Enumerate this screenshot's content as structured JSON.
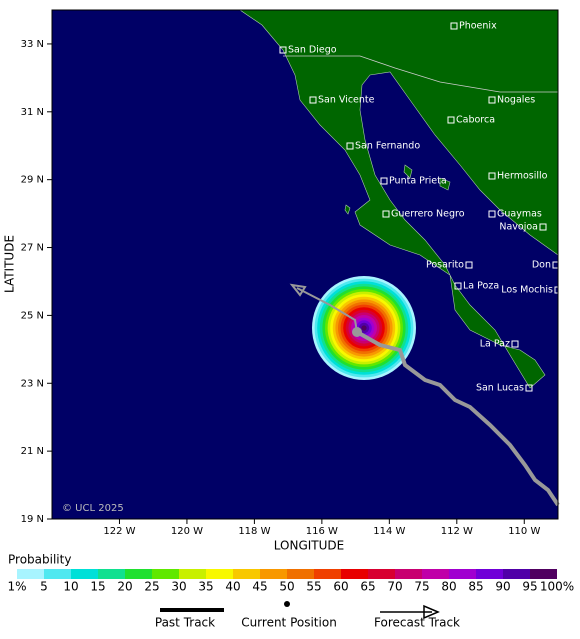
{
  "axes": {
    "x_label": "LONGITUDE",
    "y_label": "LATITUDE",
    "xlim": [
      -124,
      -109
    ],
    "ylim": [
      19,
      34
    ],
    "xticks": [
      {
        "value": -122,
        "label": "122 W"
      },
      {
        "value": -120,
        "label": "120 W"
      },
      {
        "value": -118,
        "label": "118 W"
      },
      {
        "value": -116,
        "label": "116 W"
      },
      {
        "value": -114,
        "label": "114 W"
      },
      {
        "value": -112,
        "label": "112 W"
      },
      {
        "value": -110,
        "label": "110 W"
      }
    ],
    "yticks": [
      {
        "value": 19,
        "label": "19 N"
      },
      {
        "value": 21,
        "label": "21 N"
      },
      {
        "value": 23,
        "label": "23 N"
      },
      {
        "value": 25,
        "label": "25 N"
      },
      {
        "value": 27,
        "label": "27 N"
      },
      {
        "value": 29,
        "label": "29 N"
      },
      {
        "value": 31,
        "label": "31 N"
      },
      {
        "value": 33,
        "label": "33 N"
      }
    ]
  },
  "cities": [
    "Phoenix",
    "San Diego",
    "San Vicente",
    "Nogales",
    "Caborca",
    "San Fernando",
    "Hermosillo",
    "Punta Prieta",
    "Guerrero Negro",
    "Guaymas",
    "Navojoa",
    "Posarito",
    "Don",
    "La Poza",
    "Los Mochis",
    "La Paz",
    "San Lucas"
  ],
  "copyright": "© UCL 2025",
  "probability_legend": {
    "title": "Probability",
    "labels": [
      "1%",
      "5",
      "10",
      "15",
      "20",
      "25",
      "30",
      "35",
      "40",
      "45",
      "50",
      "55",
      "60",
      "65",
      "70",
      "75",
      "80",
      "85",
      "90",
      "95",
      "100%"
    ],
    "colors": [
      "#a8f4ff",
      "#50e8f0",
      "#00e0d8",
      "#10e090",
      "#20e030",
      "#60e800",
      "#c8f000",
      "#f8f800",
      "#f8c800",
      "#f89800",
      "#f07000",
      "#f04000",
      "#e80000",
      "#d80030",
      "#c80070",
      "#c000a8",
      "#a000d0",
      "#7000d8",
      "#5000a8",
      "#500060"
    ]
  },
  "track_legend": {
    "past": "Past Track",
    "current": "Current Position",
    "forecast": "Forecast Track"
  }
}
